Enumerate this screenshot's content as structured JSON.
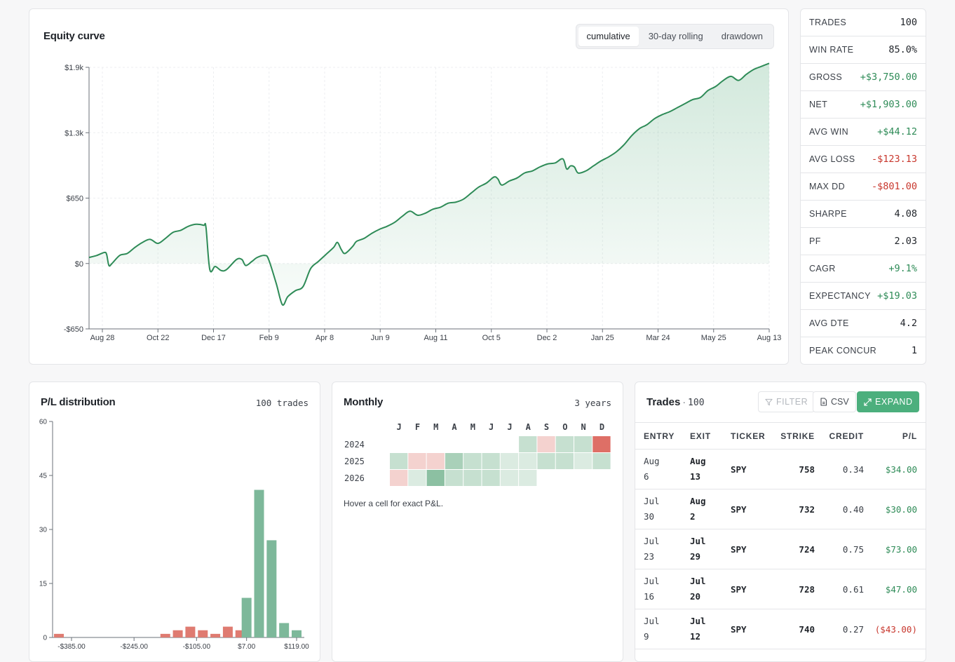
{
  "equity": {
    "title": "Equity curve",
    "tabs": [
      {
        "label": "cumulative",
        "active": true
      },
      {
        "label": "30-day rolling",
        "active": false
      },
      {
        "label": "drawdown",
        "active": false
      }
    ]
  },
  "stats": [
    {
      "label": "TRADES",
      "value": "100",
      "tone": "plain"
    },
    {
      "label": "WIN RATE",
      "value": "85.0%",
      "tone": "plain"
    },
    {
      "label": "GROSS",
      "value": "+$3,750.00",
      "tone": "pos"
    },
    {
      "label": "NET",
      "value": "+$1,903.00",
      "tone": "pos"
    },
    {
      "label": "AVG WIN",
      "value": "+$44.12",
      "tone": "pos"
    },
    {
      "label": "AVG LOSS",
      "value": "-$123.13",
      "tone": "neg"
    },
    {
      "label": "MAX DD",
      "value": "-$801.00",
      "tone": "neg"
    },
    {
      "label": "SHARPE",
      "value": "4.08",
      "tone": "plain"
    },
    {
      "label": "PF",
      "value": "2.03",
      "tone": "plain"
    },
    {
      "label": "CAGR",
      "value": "+9.1%",
      "tone": "pos"
    },
    {
      "label": "EXPECTANCY",
      "value": "+$19.03",
      "tone": "pos"
    },
    {
      "label": "AVG DTE",
      "value": "4.2",
      "tone": "plain"
    },
    {
      "label": "PEAK CONCUR",
      "value": "1",
      "tone": "plain"
    }
  ],
  "distribution": {
    "title": "P/L distribution",
    "meta": "100 trades"
  },
  "monthly": {
    "title": "Monthly",
    "meta": "3 years",
    "hint": "Hover a cell for exact P&L."
  },
  "trades": {
    "title": "Trades",
    "dot": "·",
    "count": "100",
    "filter_label": "FILTER",
    "csv_label": "CSV",
    "expand_label": "EXPAND",
    "columns": [
      "ENTRY",
      "EXIT",
      "TICKER",
      "STRIKE",
      "CREDIT",
      "P/L"
    ],
    "rows": [
      {
        "entry": "Aug 6",
        "exit": "Aug 13",
        "ticker": "SPY",
        "strike": "758",
        "credit": "0.34",
        "pl": "$34.00",
        "tone": "pos"
      },
      {
        "entry": "Jul 30",
        "exit": "Aug 2",
        "ticker": "SPY",
        "strike": "732",
        "credit": "0.40",
        "pl": "$30.00",
        "tone": "pos"
      },
      {
        "entry": "Jul 23",
        "exit": "Jul 29",
        "ticker": "SPY",
        "strike": "724",
        "credit": "0.75",
        "pl": "$73.00",
        "tone": "pos"
      },
      {
        "entry": "Jul 16",
        "exit": "Jul 20",
        "ticker": "SPY",
        "strike": "728",
        "credit": "0.61",
        "pl": "$47.00",
        "tone": "pos"
      },
      {
        "entry": "Jul 9",
        "exit": "Jul 12",
        "ticker": "SPY",
        "strike": "740",
        "credit": "0.27",
        "pl": "($43.00)",
        "tone": "neg"
      }
    ]
  },
  "colors": {
    "accent": "#4caf7d",
    "line": "#2e8b57",
    "positive": "#2e8b57",
    "negative": "#c8372d",
    "bar_pos": "#7db89a",
    "bar_neg": "#df7b71"
  },
  "chart_data": [
    {
      "type": "area",
      "title": "Equity curve",
      "y_ticks": [
        "-$650",
        "$0",
        "$650",
        "$1.3k",
        "$1.9k"
      ],
      "y_tick_values": [
        -650,
        0,
        650,
        1300,
        1950
      ],
      "ylim": [
        -650,
        1950
      ],
      "x_ticks": [
        "Aug 28",
        "Oct 22",
        "Dec 17",
        "Feb 9",
        "Apr 8",
        "Jun 9",
        "Aug 11",
        "Oct 5",
        "Dec 2",
        "Jan 25",
        "Mar 24",
        "May 25",
        "Aug 13"
      ],
      "grid": true,
      "points": [
        [
          0,
          60
        ],
        [
          1,
          80
        ],
        [
          2,
          110
        ],
        [
          2.3,
          90
        ],
        [
          2.6,
          -20
        ],
        [
          3,
          0
        ],
        [
          4,
          80
        ],
        [
          5,
          100
        ],
        [
          6,
          160
        ],
        [
          7,
          210
        ],
        [
          8,
          240
        ],
        [
          9,
          200
        ],
        [
          10,
          250
        ],
        [
          11,
          310
        ],
        [
          12,
          330
        ],
        [
          13,
          370
        ],
        [
          14,
          390
        ],
        [
          15,
          380
        ],
        [
          15.3,
          360
        ],
        [
          15.8,
          -60
        ],
        [
          16.5,
          -30
        ],
        [
          17.3,
          -70
        ],
        [
          18,
          -60
        ],
        [
          19.3,
          40
        ],
        [
          20,
          40
        ],
        [
          20.5,
          -20
        ],
        [
          21.3,
          20
        ],
        [
          22,
          60
        ],
        [
          23,
          80
        ],
        [
          23.5,
          40
        ],
        [
          24.5,
          -200
        ],
        [
          25.3,
          -410
        ],
        [
          26,
          -330
        ],
        [
          27,
          -270
        ],
        [
          28,
          -230
        ],
        [
          29,
          -50
        ],
        [
          30,
          20
        ],
        [
          31,
          90
        ],
        [
          32,
          160
        ],
        [
          32.5,
          210
        ],
        [
          33,
          140
        ],
        [
          33.5,
          100
        ],
        [
          34.5,
          170
        ],
        [
          35,
          220
        ],
        [
          36,
          250
        ],
        [
          37,
          300
        ],
        [
          38,
          340
        ],
        [
          39,
          370
        ],
        [
          40,
          410
        ],
        [
          41,
          470
        ],
        [
          42,
          520
        ],
        [
          43,
          480
        ],
        [
          44,
          500
        ],
        [
          45,
          540
        ],
        [
          46,
          560
        ],
        [
          47,
          600
        ],
        [
          48,
          610
        ],
        [
          49,
          640
        ],
        [
          50,
          700
        ],
        [
          51,
          760
        ],
        [
          52,
          800
        ],
        [
          53,
          860
        ],
        [
          53.5,
          840
        ],
        [
          54,
          780
        ],
        [
          55,
          820
        ],
        [
          56,
          850
        ],
        [
          57,
          900
        ],
        [
          58,
          920
        ],
        [
          59,
          960
        ],
        [
          60,
          990
        ],
        [
          61,
          1000
        ],
        [
          62,
          1040
        ],
        [
          62.5,
          940
        ],
        [
          63,
          970
        ],
        [
          63.5,
          960
        ],
        [
          64,
          900
        ],
        [
          65,
          920
        ],
        [
          66,
          970
        ],
        [
          67,
          1020
        ],
        [
          68,
          1060
        ],
        [
          69,
          1110
        ],
        [
          70,
          1180
        ],
        [
          71,
          1270
        ],
        [
          72,
          1340
        ],
        [
          73,
          1380
        ],
        [
          74,
          1440
        ],
        [
          75,
          1480
        ],
        [
          76,
          1510
        ],
        [
          77,
          1550
        ],
        [
          78,
          1590
        ],
        [
          79,
          1630
        ],
        [
          80,
          1650
        ],
        [
          81,
          1720
        ],
        [
          82,
          1760
        ],
        [
          83,
          1820
        ],
        [
          84,
          1860
        ],
        [
          85,
          1820
        ],
        [
          86,
          1880
        ],
        [
          87,
          1930
        ],
        [
          88,
          1960
        ],
        [
          89,
          1990
        ]
      ]
    },
    {
      "type": "bar",
      "title": "P/L distribution",
      "x_ticks": [
        "-$385.00",
        "-$245.00",
        "-$105.00",
        "$7.00",
        "$119.00"
      ],
      "y_ticks": [
        "0",
        "15",
        "30",
        "45",
        "60"
      ],
      "ylim": [
        0,
        60
      ],
      "bins": [
        {
          "x": -385,
          "count": 1,
          "sign": "neg"
        },
        {
          "x": -175,
          "count": 1,
          "sign": "neg"
        },
        {
          "x": -147,
          "count": 2,
          "sign": "neg"
        },
        {
          "x": -119,
          "count": 3,
          "sign": "neg"
        },
        {
          "x": -91,
          "count": 2,
          "sign": "neg"
        },
        {
          "x": -63,
          "count": 1,
          "sign": "neg"
        },
        {
          "x": -35,
          "count": 3,
          "sign": "neg"
        },
        {
          "x": -7,
          "count": 2,
          "sign": "neg"
        },
        {
          "x": 7,
          "count": 11,
          "sign": "pos"
        },
        {
          "x": 35,
          "count": 41,
          "sign": "pos"
        },
        {
          "x": 63,
          "count": 27,
          "sign": "pos"
        },
        {
          "x": 91,
          "count": 4,
          "sign": "pos"
        },
        {
          "x": 119,
          "count": 2,
          "sign": "pos"
        }
      ]
    },
    {
      "type": "heatmap",
      "title": "Monthly",
      "columns": [
        "J",
        "F",
        "M",
        "A",
        "M",
        "J",
        "J",
        "A",
        "S",
        "O",
        "N",
        "D"
      ],
      "rows": [
        {
          "year": "2024",
          "values": [
            null,
            null,
            null,
            null,
            null,
            null,
            null,
            1,
            -1,
            1,
            1,
            -3
          ]
        },
        {
          "year": "2025",
          "values": [
            1,
            -1,
            -1,
            2,
            1,
            1,
            0.5,
            0.5,
            1,
            1,
            0.5,
            1
          ]
        },
        {
          "year": "2026",
          "values": [
            -1,
            0.5,
            3,
            1,
            1,
            1,
            0.5,
            0.5,
            null,
            null,
            null,
            null
          ]
        }
      ]
    }
  ]
}
